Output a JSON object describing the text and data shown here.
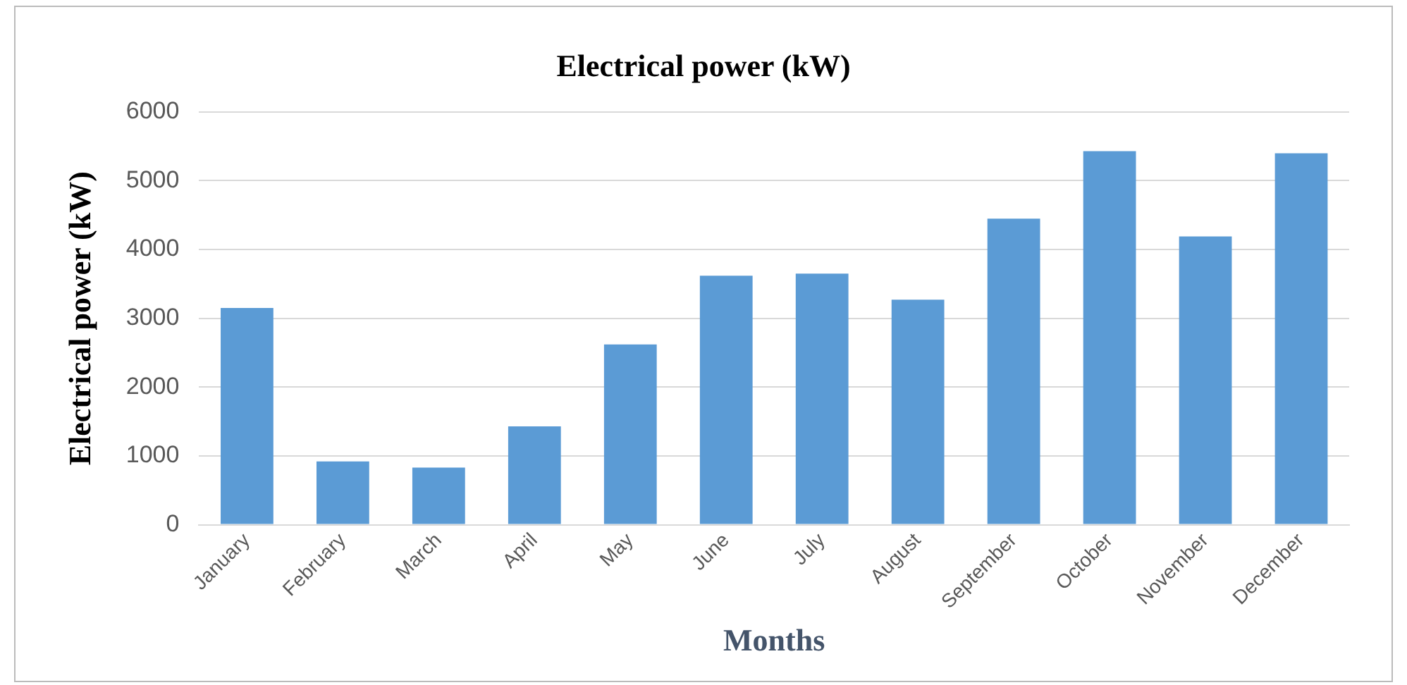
{
  "chart_data": {
    "type": "bar",
    "title": "Electrical power (kW)",
    "xlabel": "Months",
    "ylabel": "Electrical power (kW)",
    "categories": [
      "January",
      "February",
      "March",
      "April",
      "May",
      "June",
      "July",
      "August",
      "September",
      "October",
      "November",
      "December"
    ],
    "values": [
      3150,
      920,
      830,
      1430,
      2620,
      3620,
      3650,
      3270,
      4450,
      5430,
      4190,
      5400
    ],
    "color": "#5b9bd5",
    "ylim": [
      0,
      6000
    ],
    "yticks": [
      0,
      1000,
      2000,
      3000,
      4000,
      5000,
      6000
    ],
    "grid": "y",
    "legend": false
  }
}
